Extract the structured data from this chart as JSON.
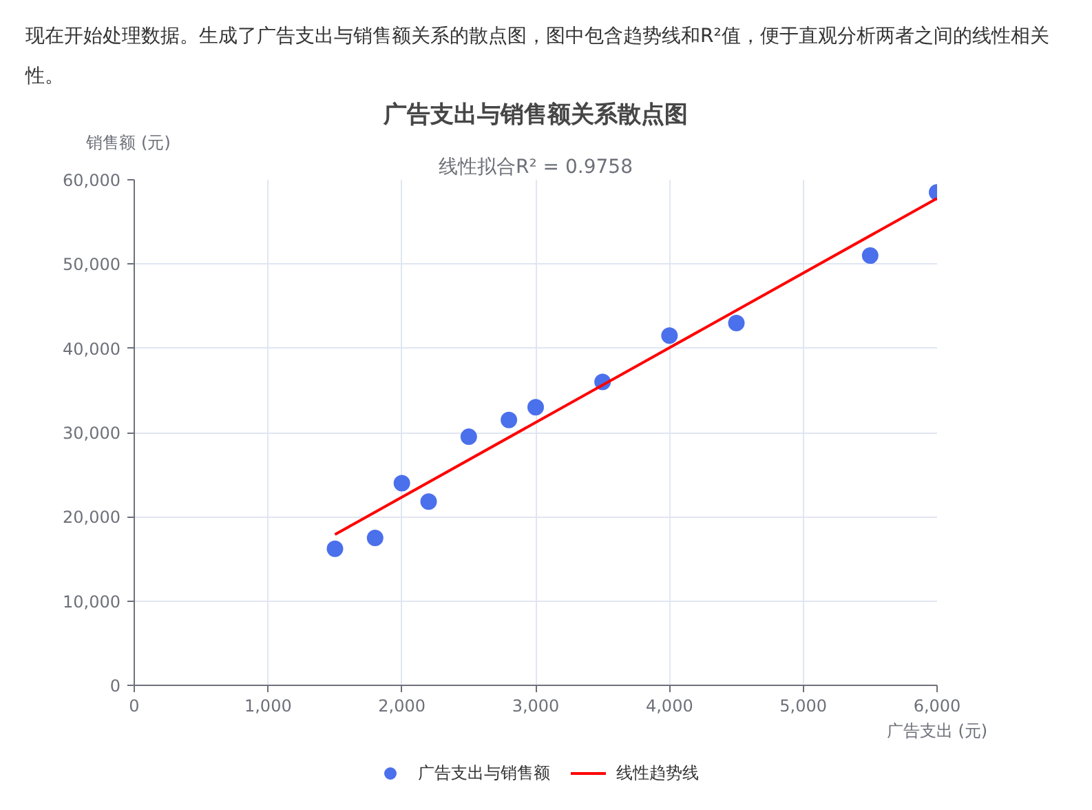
{
  "chart_data": {
    "type": "scatter",
    "title": "广告支出与销售额关系散点图",
    "subtitle": "线性拟合R² = 0.9758",
    "xlabel": "广告支出 (元)",
    "ylabel": "销售额 (元)",
    "annotations": [
      "现在开始处理数据。生成了广告支出与销售额关系的散点图，图中包含趋势线和R²值，便于直观分析两者之间的线性相关性。"
    ],
    "x": [
      1500,
      1800,
      2000,
      2200,
      2500,
      2800,
      3000,
      3500,
      4000,
      4500,
      5500,
      6000
    ],
    "series": [
      {
        "name": "广告支出与销售额",
        "marker": "circle",
        "color": "#4b70ec",
        "values": [
          16200,
          17500,
          24000,
          21800,
          29500,
          31500,
          33000,
          36000,
          41500,
          43000,
          51000,
          58500
        ]
      },
      {
        "name": "线性趋势线",
        "type": "line",
        "marker": "none",
        "line_style": "solid",
        "color": "#ff0000",
        "x": [
          1500,
          6000
        ],
        "values": [
          17900,
          57800
        ]
      }
    ],
    "xlim": [
      0,
      6000
    ],
    "ylim": [
      0,
      60000
    ],
    "xticks": [
      0,
      {
        "value": 1000,
        "label": "1,000"
      },
      {
        "value": 2000,
        "label": "2,000"
      },
      {
        "value": 3000,
        "label": "3,000"
      },
      {
        "value": 4000,
        "label": "4,000"
      },
      {
        "value": 5000,
        "label": "5,000"
      },
      {
        "value": 6000,
        "label": "6,000"
      }
    ],
    "yticks": [
      0,
      {
        "value": 10000,
        "label": "10,000"
      },
      {
        "value": 20000,
        "label": "20,000"
      },
      {
        "value": 30000,
        "label": "30,000"
      },
      {
        "value": 40000,
        "label": "40,000"
      },
      {
        "value": 50000,
        "label": "50,000"
      },
      {
        "value": 60000,
        "label": "60,000"
      }
    ],
    "grid": true,
    "legend": "bottom"
  }
}
